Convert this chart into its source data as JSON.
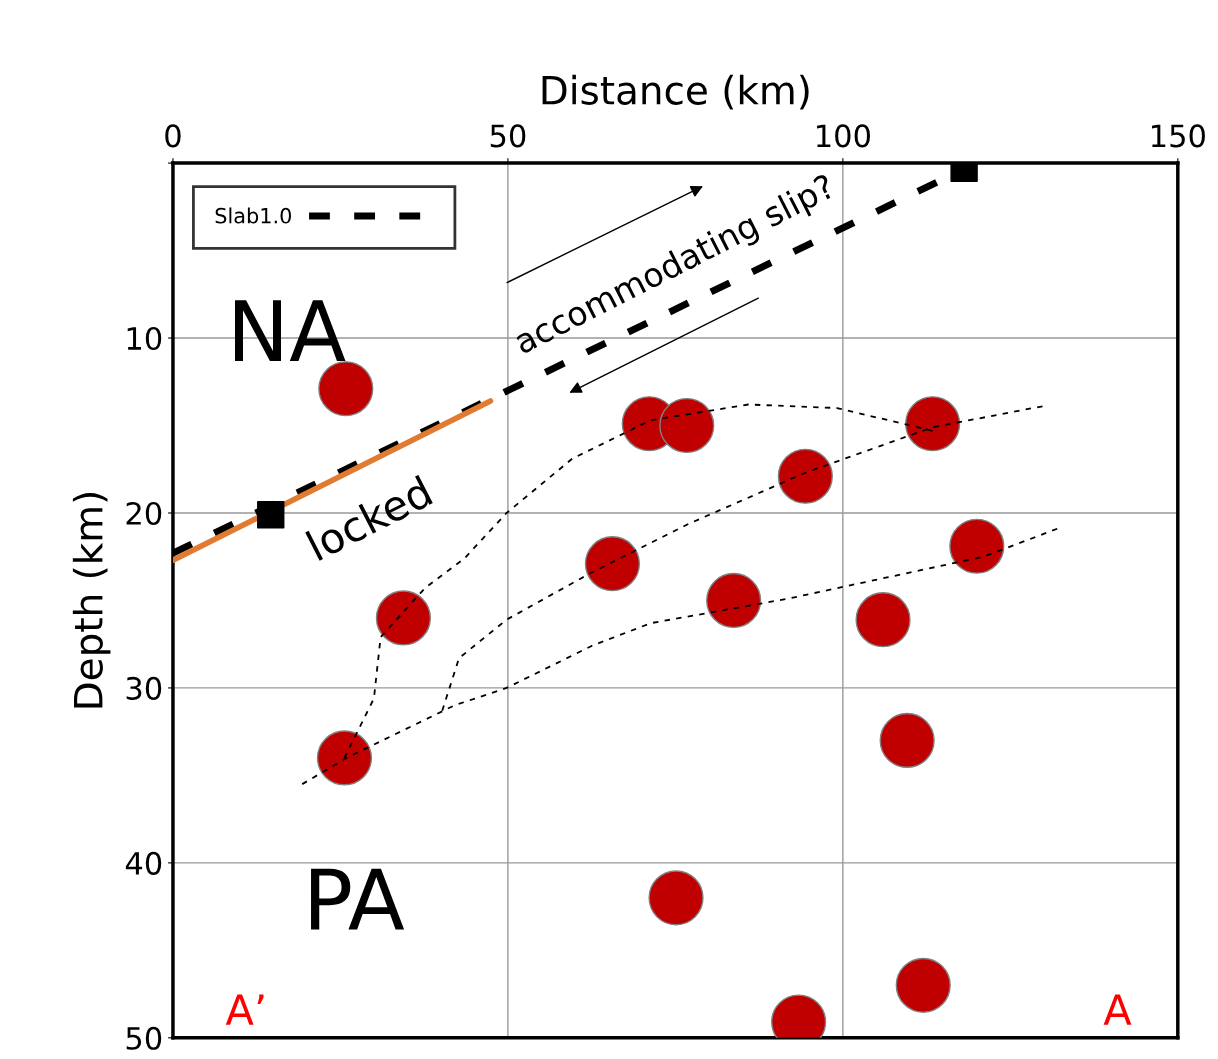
{
  "chart_data": {
    "type": "scatter",
    "xlabel": "Distance (km)",
    "ylabel": "Depth (km)",
    "xlim": [
      0,
      150
    ],
    "xticks": [
      0,
      50,
      100,
      150
    ],
    "ylim": [
      50,
      0
    ],
    "yticks": [
      {
        "value": 0,
        "label": null
      },
      10,
      20,
      30,
      40,
      50
    ],
    "grid": true,
    "legend": "top left",
    "series": [
      {
        "name": "Slab1.0",
        "type": "line",
        "line_style": "dashed",
        "color": "#000000",
        "x": [
          0,
          114
        ],
        "values": [
          22.3,
          1.1
        ]
      },
      {
        "type": "line",
        "line_style": "solid",
        "color": "#e07b30",
        "x": [
          0,
          47.4
        ],
        "values": [
          22.7,
          13.6
        ]
      },
      {
        "type": "scatter",
        "marker": "square",
        "color": "#000000",
        "x": [
          14.6,
          118.1
        ],
        "values": [
          20.1,
          0.3
        ]
      },
      {
        "type": "line",
        "line_style": "dotted",
        "color": "#000000",
        "x": [
          19.3,
          25.9,
          42.0,
          49.8,
          62.5,
          71.3,
          91.8,
          106.4,
          121.0,
          132.0
        ],
        "values": [
          35.5,
          34.0,
          31.0,
          30.0,
          27.6,
          26.3,
          24.9,
          23.7,
          22.5,
          20.9
        ]
      },
      {
        "type": "line",
        "line_style": "dotted",
        "color": "#000000",
        "x": [
          40.2,
          42.7,
          49.8,
          62.5,
          77.1,
          94.4,
          113.4,
          129.8
        ],
        "values": [
          31.3,
          28.3,
          26.1,
          23.4,
          20.6,
          17.7,
          15.1,
          13.9
        ]
      },
      {
        "type": "line",
        "line_style": "dotted",
        "color": "#000000",
        "x": [
          25.6,
          30.0,
          31.0,
          37.6,
          43.5,
          49.8,
          59.6,
          71.3,
          85.9,
          99.1,
          113.4
        ],
        "values": [
          34.0,
          30.6,
          27.1,
          24.3,
          22.6,
          20.0,
          16.9,
          14.7,
          13.8,
          14.0,
          15.3
        ]
      },
      {
        "marker": "circle",
        "color": "#c00000",
        "x": [
          25.8,
          71.1,
          76.7,
          94.4,
          113.4,
          65.6,
          83.7,
          120.0,
          106.0,
          34.4,
          25.6,
          109.6,
          75.1,
          112.0,
          93.4
        ],
        "values": [
          12.9,
          14.9,
          15.0,
          17.9,
          14.9,
          22.9,
          25.0,
          21.9,
          26.1,
          26.0,
          34.0,
          33.0,
          42.0,
          47.0,
          49.1
        ]
      }
    ],
    "annotations": [
      "NA",
      "PA",
      "locked",
      "accommodating slip?",
      "A’",
      "A"
    ]
  }
}
